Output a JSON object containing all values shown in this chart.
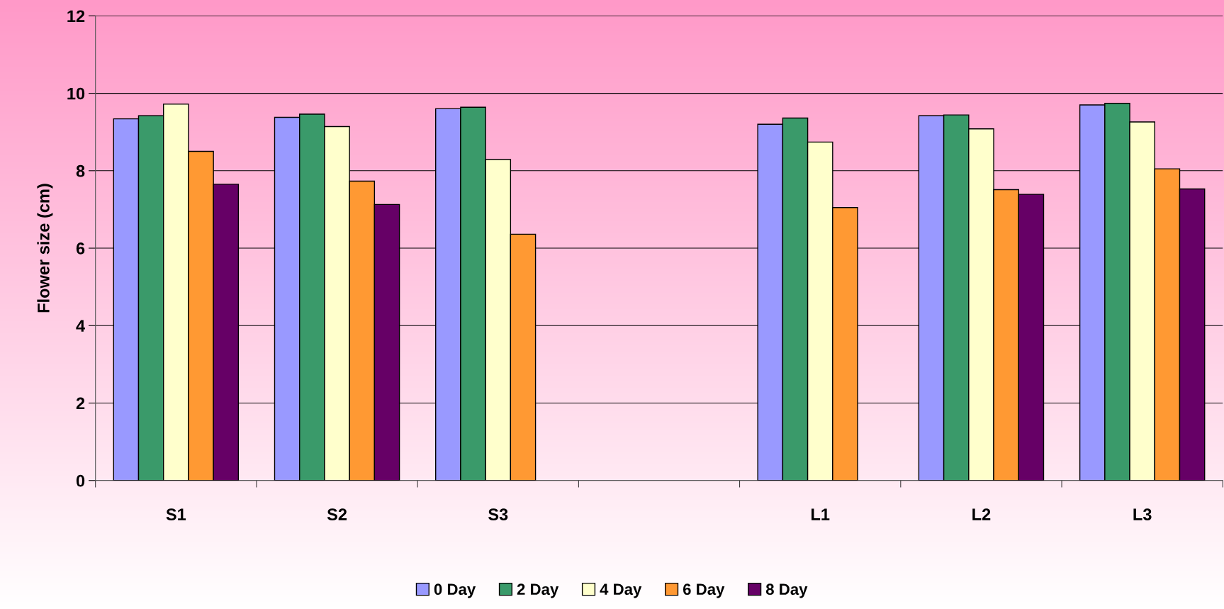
{
  "chart_data": {
    "type": "bar",
    "ylabel": "Flower size (cm)",
    "categories": [
      "S1",
      "S2",
      "S3",
      null,
      "L1",
      "L2",
      "L3"
    ],
    "series": [
      {
        "name": "0 Day",
        "color": "#9999ff",
        "values": [
          9.34,
          9.38,
          9.6,
          null,
          9.2,
          9.42,
          9.7
        ]
      },
      {
        "name": "2 Day",
        "color": "#3a9a6a",
        "values": [
          9.42,
          9.46,
          9.64,
          null,
          9.36,
          9.44,
          9.74
        ]
      },
      {
        "name": "4 Day",
        "color": "#ffffcc",
        "values": [
          9.72,
          9.14,
          8.29,
          null,
          8.74,
          9.08,
          9.26
        ]
      },
      {
        "name": "6 Day",
        "color": "#ff9933",
        "values": [
          8.5,
          7.73,
          6.36,
          null,
          7.05,
          7.51,
          8.05
        ]
      },
      {
        "name": "8 Day",
        "color": "#660066",
        "values": [
          7.65,
          7.13,
          null,
          null,
          null,
          7.39,
          7.53
        ]
      }
    ],
    "ylim": [
      0,
      12
    ],
    "yticks": [
      0,
      2,
      4,
      6,
      8,
      10,
      12
    ],
    "grid": "y",
    "legend": "bottom"
  }
}
